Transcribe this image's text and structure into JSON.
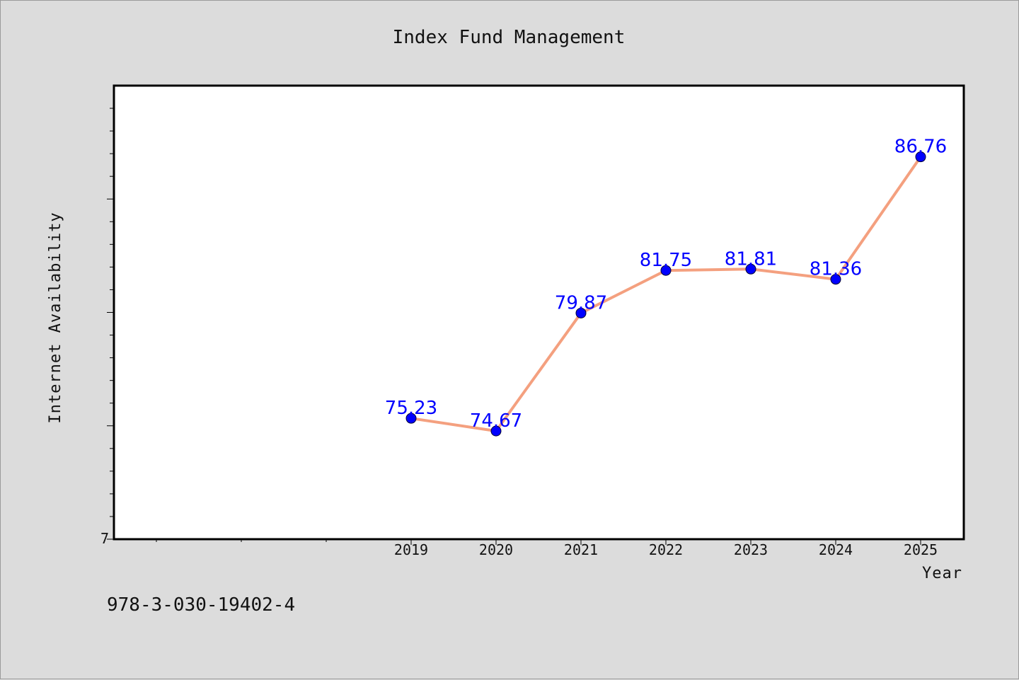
{
  "chart_data": {
    "type": "line",
    "title": "Index Fund Management",
    "xlabel": "Year",
    "ylabel": "Internet Availability",
    "categories": [
      "2019",
      "2020",
      "2021",
      "2022",
      "2023",
      "2024",
      "2025"
    ],
    "values": [
      75.23,
      74.67,
      79.87,
      81.75,
      81.81,
      81.36,
      86.76
    ],
    "data_labels": [
      "75.23",
      "74.67",
      "79.87",
      "81.75",
      "81.81",
      "81.36",
      "86.76"
    ],
    "y_tick_label": "7",
    "ylim": [
      69.9,
      89.9
    ],
    "x_slots": 10,
    "line_color": "#f4a07f",
    "marker_color": "#0000ff",
    "label_color": "#0000ff",
    "grid": false,
    "legend": "none"
  },
  "footer": {
    "isbn": "978-3-030-19402-4"
  }
}
